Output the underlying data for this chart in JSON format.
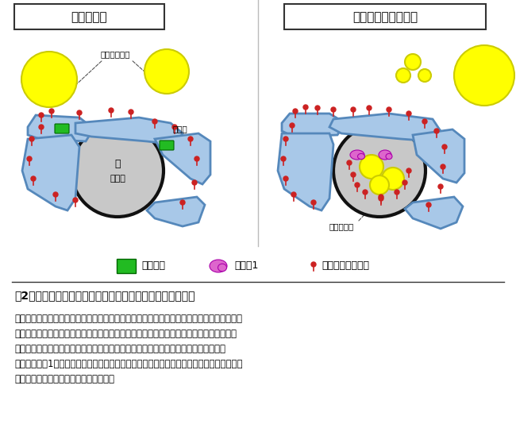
{
  "bg_color": "#ffffff",
  "title_left": "正常な細胞",
  "title_right": "セイピンがない細胞",
  "label_cytoplasmic_droplet": "細胞質脂肪滴",
  "label_er_left": "小胞体",
  "label_nucleus_left": "核",
  "label_inner_membrane_left": "内核膜",
  "label_nuclear_droplet": "核内脂肪滴",
  "legend_seipin": "セイピン",
  "legend_lipin": "リピン1",
  "legend_pa": "ホスファチジン酸",
  "fig_title": "図2：本研究で明らかになった核内脂肪滴形成のメカニズム",
  "fig_text": "正常な細胞では小胞体でホスファチジン酸からトリグリセリドが合成され、セイピンがある\nことによって細胞質脂肪滴が効率よく形成される。一方、セイピンがない細胞では細胞質\n脂肪滴形成が滞るため余剰のホスファチジン酸が小胞体から内核膜に移動し、発現が\n増えたリピン1がホスファチジン酸に作用することによって、内核膜でのトリグリセリド合\n成が増加し、核内脂肪滴が形成される。",
  "er_color": "#a8c8e8",
  "er_dark": "#5588bb",
  "nucleus_fill": "#c8c8c8",
  "nucleus_edge": "#222222",
  "droplet_yellow": "#ffff00",
  "droplet_yellow_edge": "#cccc00",
  "seipin_color": "#22bb22",
  "lipin_color": "#dd66cc",
  "pa_color": "#cc2222",
  "pa_stem_color": "#cc2222",
  "text_color": "#000000",
  "box_color": "#ffffff",
  "box_edge": "#333333"
}
